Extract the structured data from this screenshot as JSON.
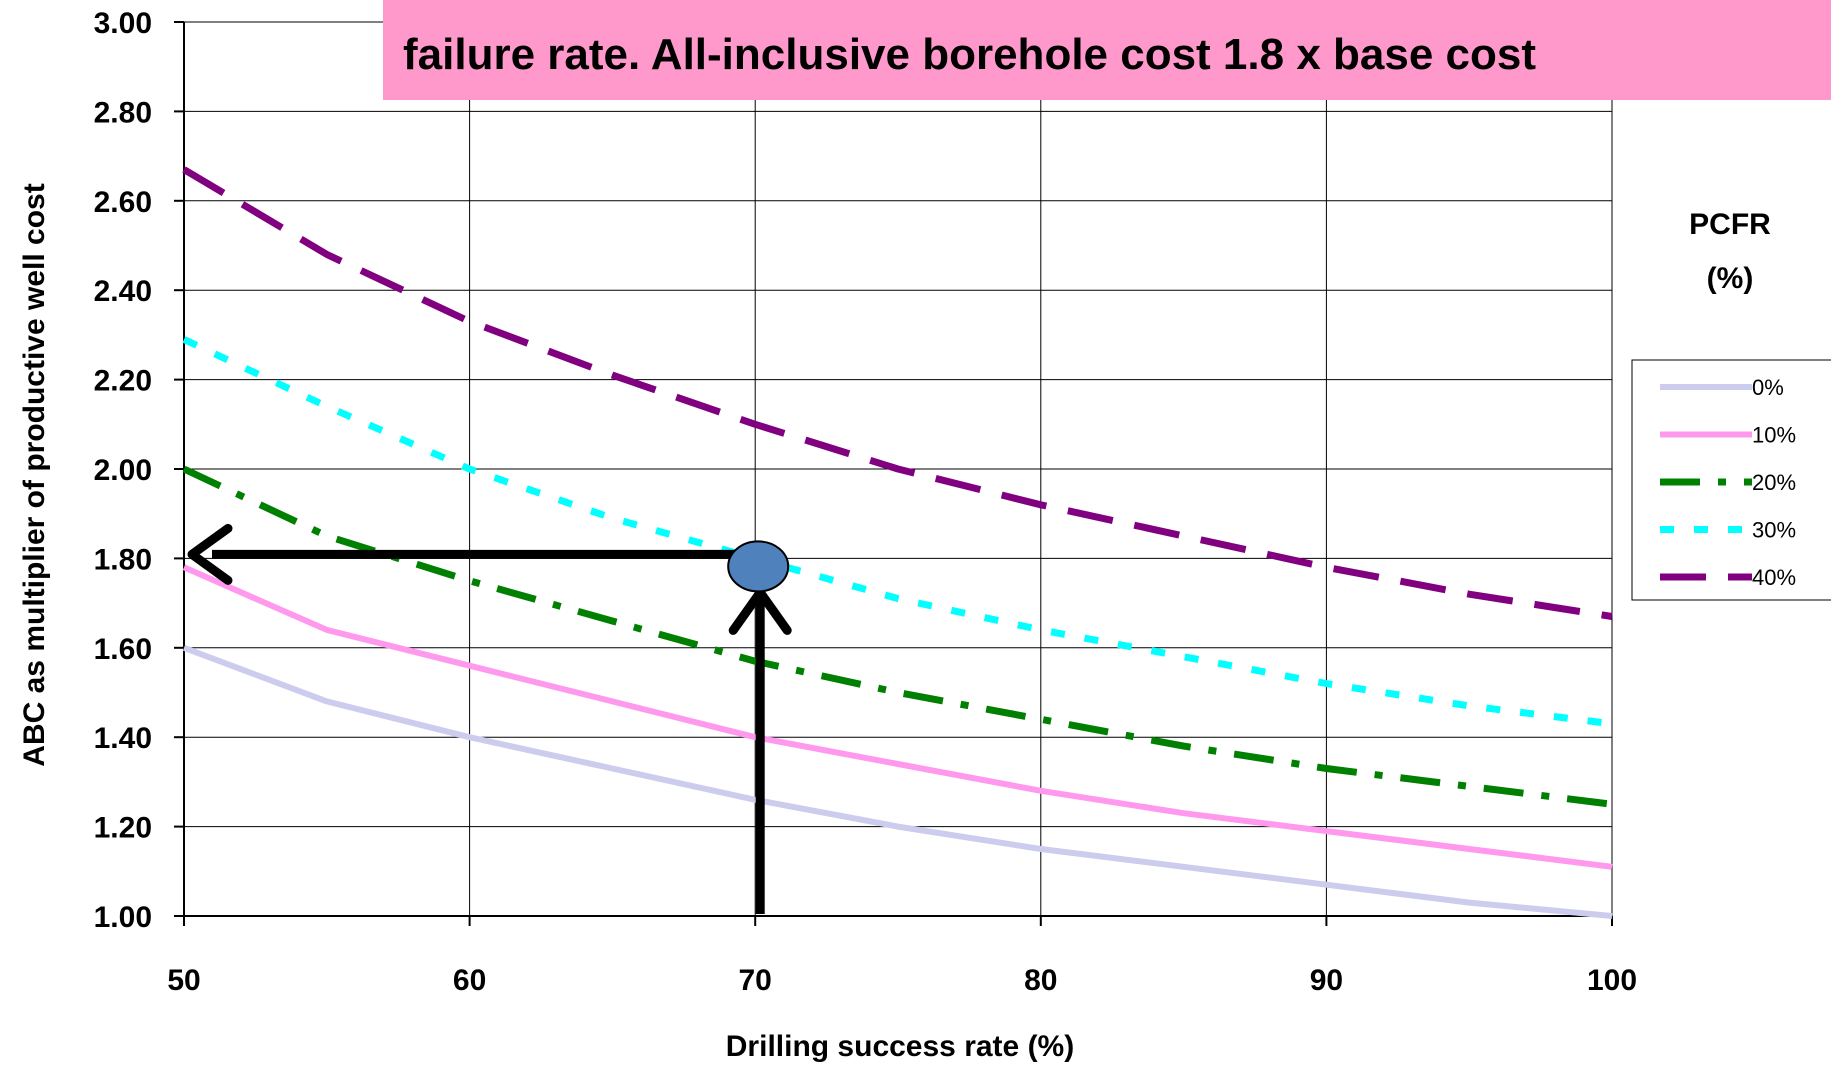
{
  "banner": {
    "line1": "                                           ",
    "line2": "failure rate.  All-inclusive borehole cost 1.8 x base cost"
  },
  "chart_data": {
    "type": "line",
    "title": "",
    "xlabel": "Drilling success rate (%)",
    "ylabel": "ABC as multiplier of productive well cost",
    "xlim": [
      50,
      100
    ],
    "ylim": [
      1.0,
      3.0
    ],
    "x_ticks": [
      "50",
      "60",
      "70",
      "80",
      "90",
      "100"
    ],
    "y_ticks": [
      "1.00",
      "1.20",
      "1.40",
      "1.60",
      "1.80",
      "2.00",
      "2.20",
      "2.40",
      "2.60",
      "2.80",
      "3.00"
    ],
    "grid": true,
    "legend_title": "PCFR (%)",
    "legend_position": "right",
    "x": [
      50,
      55,
      60,
      65,
      70,
      75,
      80,
      85,
      90,
      95,
      100
    ],
    "series": [
      {
        "name": "0%",
        "color": "#ccccee",
        "dash": "solid",
        "values": [
          1.6,
          1.48,
          1.4,
          1.33,
          1.26,
          1.2,
          1.15,
          1.11,
          1.07,
          1.03,
          1.0
        ]
      },
      {
        "name": "10%",
        "color": "#ff99ee",
        "dash": "solid",
        "values": [
          1.78,
          1.64,
          1.56,
          1.48,
          1.4,
          1.34,
          1.28,
          1.23,
          1.19,
          1.15,
          1.11
        ]
      },
      {
        "name": "20%",
        "color": "#008000",
        "dash": "dashdot",
        "values": [
          2.0,
          1.85,
          1.75,
          1.66,
          1.57,
          1.5,
          1.44,
          1.38,
          1.33,
          1.29,
          1.25
        ]
      },
      {
        "name": "30%",
        "color": "#00ffff",
        "dash": "dotted",
        "values": [
          2.29,
          2.14,
          2.0,
          1.89,
          1.8,
          1.71,
          1.64,
          1.58,
          1.52,
          1.47,
          1.43
        ]
      },
      {
        "name": "40%",
        "color": "#800080",
        "dash": "dashed",
        "values": [
          2.67,
          2.48,
          2.33,
          2.21,
          2.1,
          2.0,
          1.92,
          1.85,
          1.78,
          1.72,
          1.67
        ]
      }
    ],
    "annotation": {
      "x": 70,
      "y": 1.8,
      "marker_color": "#4f81bd"
    }
  }
}
